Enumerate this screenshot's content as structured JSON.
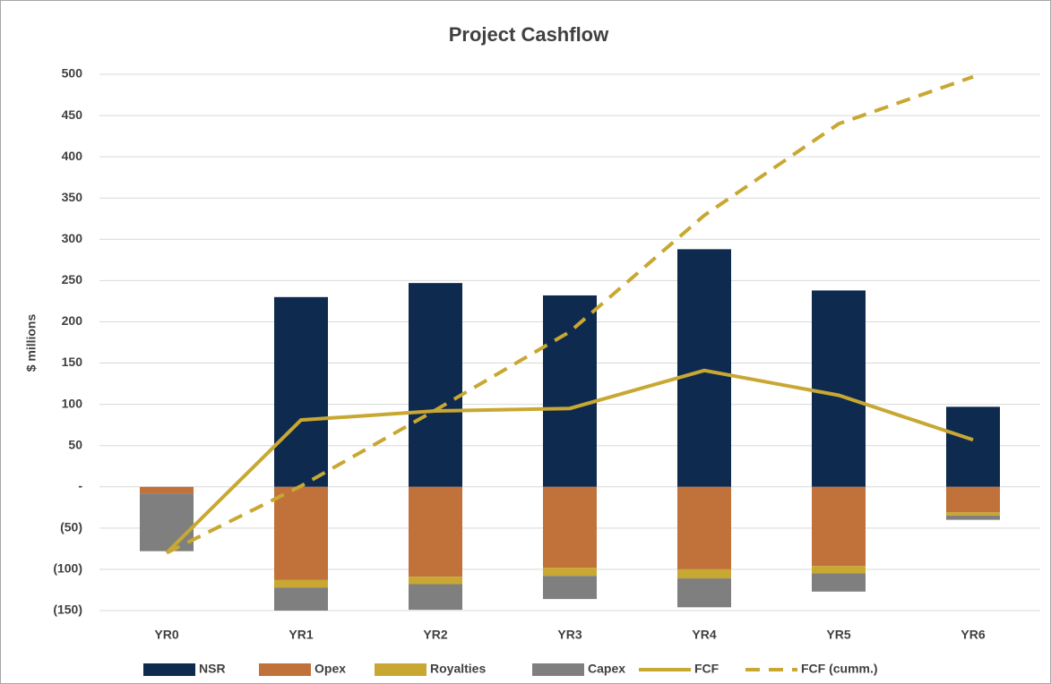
{
  "chart_data": {
    "type": "bar",
    "title": "Project Cashflow",
    "y_label": "$ millions",
    "categories": [
      "YR0",
      "YR1",
      "YR2",
      "YR3",
      "YR4",
      "YR5",
      "YR6"
    ],
    "series": [
      {
        "name": "NSR",
        "type": "bar",
        "color": "#0e2a4f",
        "values": [
          0,
          230,
          247,
          232,
          288,
          238,
          97
        ]
      },
      {
        "name": "Opex",
        "type": "bar",
        "color": "#c0723a",
        "values": [
          -8,
          -113,
          -109,
          -98,
          -100,
          -96,
          -31
        ]
      },
      {
        "name": "Royalties",
        "type": "bar",
        "color": "#c8a832",
        "values": [
          0,
          -9,
          -9,
          -10,
          -11,
          -9,
          -4
        ]
      },
      {
        "name": "Capex",
        "type": "bar",
        "color": "#7f7f7f",
        "values": [
          -70,
          -28,
          -31,
          -28,
          -35,
          -22,
          -5
        ]
      },
      {
        "name": "FCF",
        "type": "line",
        "color": "#c8a832",
        "values": [
          -80,
          81,
          92,
          95,
          141,
          111,
          57
        ]
      },
      {
        "name": "FCF (cumm.)",
        "type": "line",
        "dashed": true,
        "color": "#c8a832",
        "values": [
          -80,
          1,
          93,
          188,
          329,
          440,
          497
        ]
      }
    ],
    "stacked": true,
    "ylim": [
      -150,
      500
    ],
    "yticks": [
      500,
      450,
      400,
      350,
      300,
      250,
      200,
      150,
      100,
      50,
      {
        "value": 0,
        "label": "-"
      },
      {
        "value": -50,
        "label": "(50)"
      },
      {
        "value": -100,
        "label": "(100)"
      },
      {
        "value": -150,
        "label": "(150)"
      }
    ],
    "grid": true,
    "legend": "bottom"
  }
}
